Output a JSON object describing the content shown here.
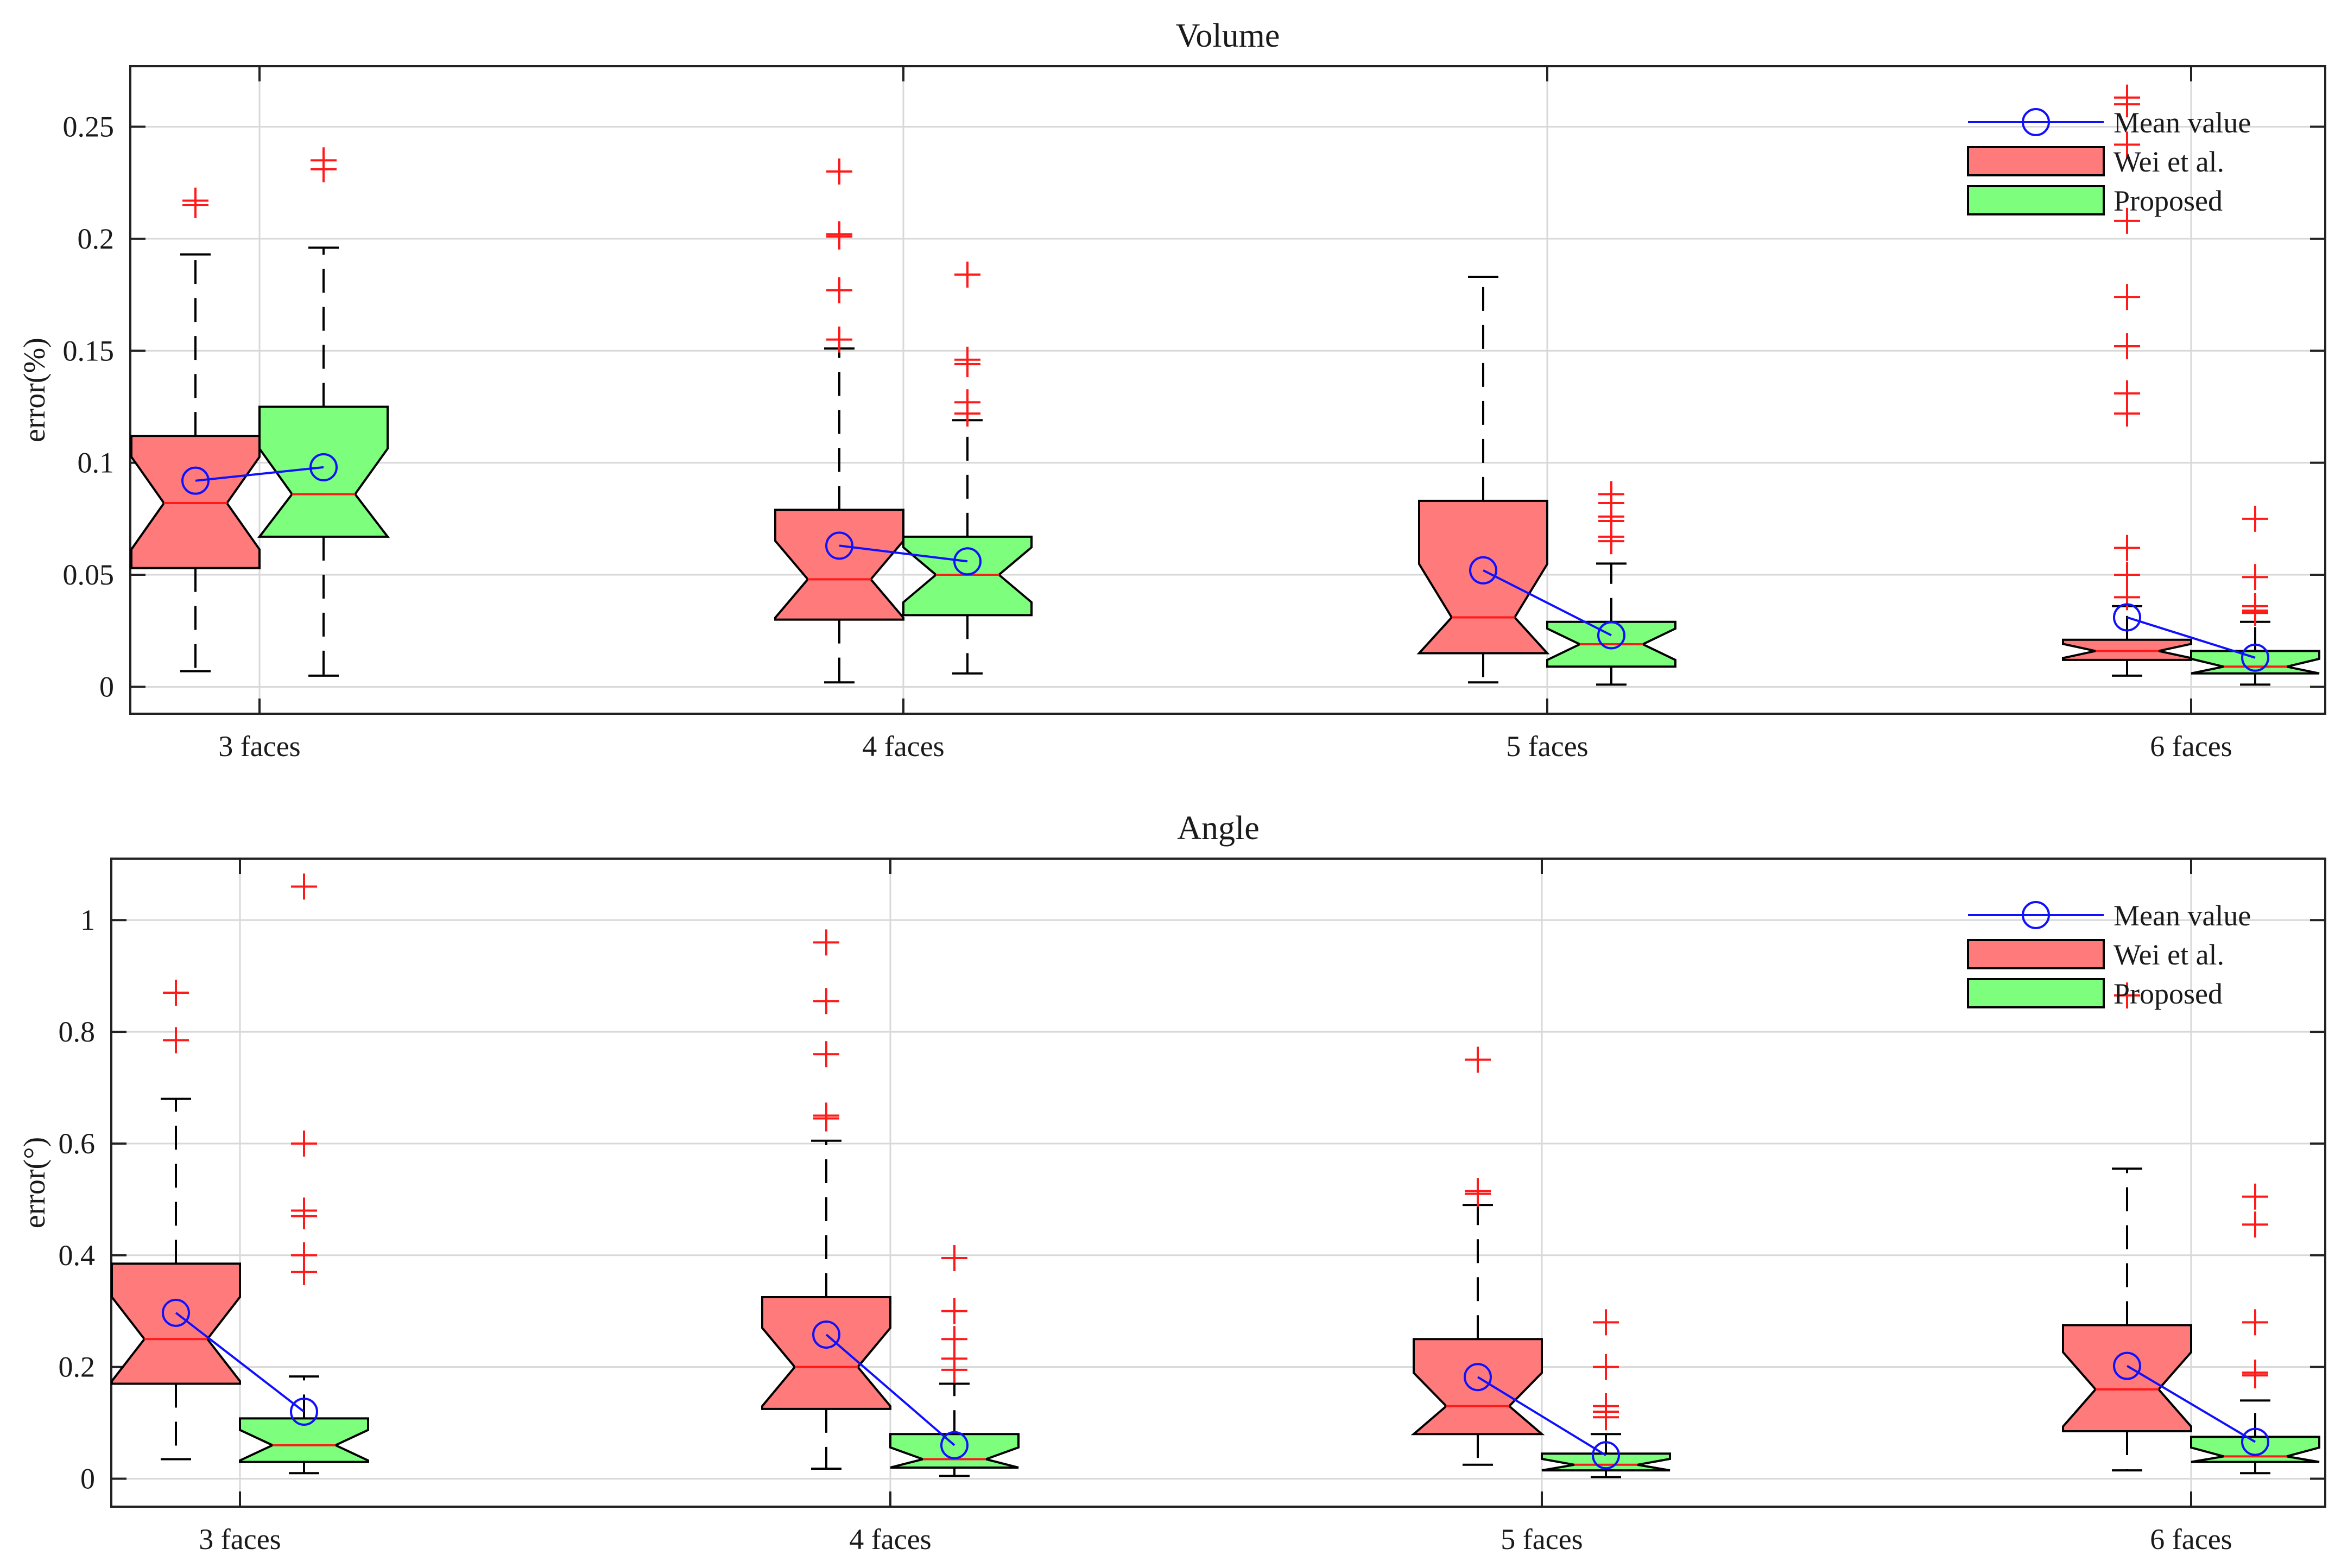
{
  "figure": {
    "colors": {
      "wei": "#ff7b7b",
      "proposed": "#7dff7d",
      "mean": "#1010ff",
      "outlier": "#ff1a1a",
      "grid": "#d8d8d8"
    }
  },
  "chart_data": [
    {
      "type": "box",
      "title": "Volume",
      "ylabel": "error(%)",
      "ylim": [
        -0.012,
        0.277
      ],
      "yticks": [
        0,
        0.05,
        0.1,
        0.15,
        0.2,
        0.25
      ],
      "ytick_labels": [
        "0",
        "0.05",
        "0.1",
        "0.15",
        "0.2",
        "0.25"
      ],
      "categories": [
        "3 faces",
        "4 faces",
        "5 faces",
        "6 faces"
      ],
      "legend": {
        "position": "top-right",
        "entries": [
          "Mean value",
          "Wei et al.",
          "Proposed"
        ]
      },
      "series": [
        {
          "name": "Wei et al.",
          "boxes": [
            {
              "whisker_low": 0.007,
              "q1": 0.053,
              "median": 0.082,
              "q3": 0.112,
              "whisker_high": 0.193,
              "mean": 0.092,
              "outliers": [
                0.215,
                0.217
              ]
            },
            {
              "whisker_low": 0.002,
              "q1": 0.03,
              "median": 0.048,
              "q3": 0.079,
              "whisker_high": 0.151,
              "mean": 0.063,
              "outliers": [
                0.23,
                0.202,
                0.201,
                0.177,
                0.155
              ]
            },
            {
              "whisker_low": 0.002,
              "q1": 0.015,
              "median": 0.031,
              "q3": 0.083,
              "whisker_high": 0.183,
              "mean": 0.052,
              "outliers": []
            },
            {
              "whisker_low": 0.005,
              "q1": 0.012,
              "median": 0.016,
              "q3": 0.021,
              "whisker_high": 0.036,
              "mean": 0.031,
              "outliers": [
                0.263,
                0.26,
                0.242,
                0.208,
                0.174,
                0.152,
                0.131,
                0.122,
                0.062,
                0.05,
                0.04
              ]
            }
          ]
        },
        {
          "name": "Proposed",
          "boxes": [
            {
              "whisker_low": 0.005,
              "q1": 0.067,
              "median": 0.086,
              "q3": 0.125,
              "whisker_high": 0.196,
              "mean": 0.098,
              "outliers": [
                0.235,
                0.231
              ]
            },
            {
              "whisker_low": 0.006,
              "q1": 0.032,
              "median": 0.05,
              "q3": 0.067,
              "whisker_high": 0.119,
              "mean": 0.056,
              "outliers": [
                0.184,
                0.146,
                0.144,
                0.127,
                0.122
              ]
            },
            {
              "whisker_low": 0.001,
              "q1": 0.009,
              "median": 0.019,
              "q3": 0.029,
              "whisker_high": 0.055,
              "mean": 0.023,
              "outliers": [
                0.086,
                0.082,
                0.076,
                0.074,
                0.067,
                0.065
              ]
            },
            {
              "whisker_low": 0.001,
              "q1": 0.006,
              "median": 0.009,
              "q3": 0.016,
              "whisker_high": 0.029,
              "mean": 0.013,
              "outliers": [
                0.075,
                0.049,
                0.036,
                0.034,
                0.033
              ]
            }
          ]
        }
      ]
    },
    {
      "type": "box",
      "title": "Angle",
      "ylabel": "error(°)",
      "ylim": [
        -0.05,
        1.11
      ],
      "yticks": [
        0,
        0.2,
        0.4,
        0.6,
        0.8,
        1
      ],
      "ytick_labels": [
        "0",
        "0.2",
        "0.4",
        "0.6",
        "0.8",
        "1"
      ],
      "categories": [
        "3 faces",
        "4 faces",
        "5 faces",
        "6 faces"
      ],
      "legend": {
        "position": "top-right",
        "entries": [
          "Mean value",
          "Wei et al.",
          "Proposed"
        ]
      },
      "series": [
        {
          "name": "Wei et al.",
          "boxes": [
            {
              "whisker_low": 0.035,
              "q1": 0.17,
              "median": 0.25,
              "q3": 0.385,
              "whisker_high": 0.68,
              "mean": 0.297,
              "outliers": [
                0.87,
                0.785
              ]
            },
            {
              "whisker_low": 0.018,
              "q1": 0.125,
              "median": 0.2,
              "q3": 0.325,
              "whisker_high": 0.605,
              "mean": 0.258,
              "outliers": [
                0.96,
                0.855,
                0.76,
                0.65,
                0.645
              ]
            },
            {
              "whisker_low": 0.025,
              "q1": 0.08,
              "median": 0.13,
              "q3": 0.25,
              "whisker_high": 0.49,
              "mean": 0.182,
              "outliers": [
                0.75,
                0.515,
                0.51
              ]
            },
            {
              "whisker_low": 0.015,
              "q1": 0.085,
              "median": 0.16,
              "q3": 0.275,
              "whisker_high": 0.555,
              "mean": 0.202,
              "outliers": [
                0.865
              ]
            }
          ]
        },
        {
          "name": "Proposed",
          "boxes": [
            {
              "whisker_low": 0.01,
              "q1": 0.03,
              "median": 0.06,
              "q3": 0.108,
              "whisker_high": 0.183,
              "mean": 0.12,
              "outliers": [
                1.06,
                0.6,
                0.48,
                0.47,
                0.4,
                0.37
              ]
            },
            {
              "whisker_low": 0.005,
              "q1": 0.02,
              "median": 0.035,
              "q3": 0.08,
              "whisker_high": 0.17,
              "mean": 0.06,
              "outliers": [
                0.395,
                0.3,
                0.25,
                0.215,
                0.195
              ]
            },
            {
              "whisker_low": 0.003,
              "q1": 0.015,
              "median": 0.025,
              "q3": 0.045,
              "whisker_high": 0.08,
              "mean": 0.042,
              "outliers": [
                0.28,
                0.2,
                0.13,
                0.12,
                0.11
              ]
            },
            {
              "whisker_low": 0.01,
              "q1": 0.03,
              "median": 0.04,
              "q3": 0.075,
              "whisker_high": 0.14,
              "mean": 0.066,
              "outliers": [
                0.505,
                0.455,
                0.28,
                0.19,
                0.185
              ]
            }
          ]
        }
      ]
    }
  ]
}
